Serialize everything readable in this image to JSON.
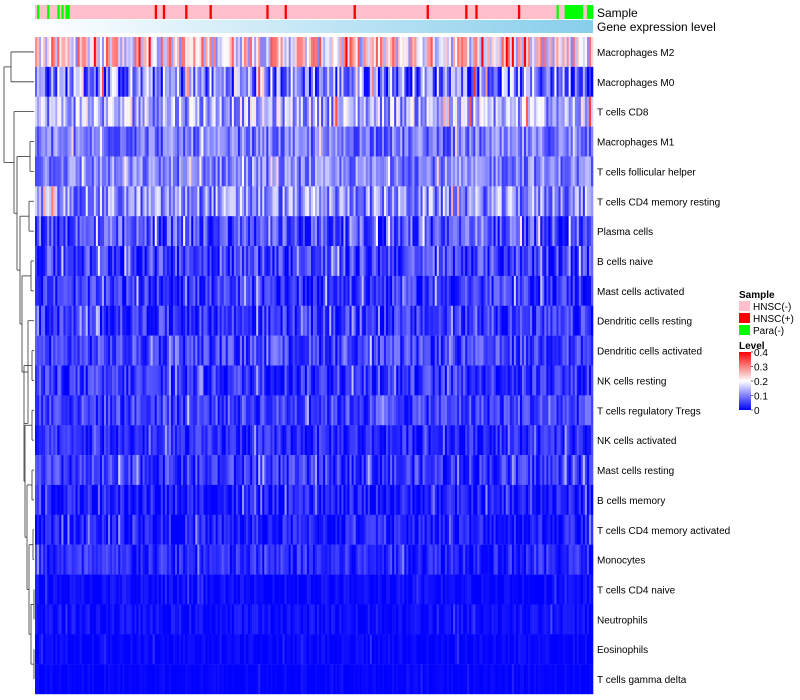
{
  "chart_data": {
    "type": "heatmap",
    "title": "",
    "annotation_rows": [
      {
        "label": "Sample"
      },
      {
        "label": "Gene expression level"
      }
    ],
    "rows": [
      {
        "label": "Macrophages M2",
        "mean": 0.22,
        "spread": 0.12
      },
      {
        "label": "Macrophages M0",
        "mean": 0.1,
        "spread": 0.11
      },
      {
        "label": "T cells CD8",
        "mean": 0.14,
        "spread": 0.09
      },
      {
        "label": "Macrophages M1",
        "mean": 0.09,
        "spread": 0.06
      },
      {
        "label": "T cells follicular helper",
        "mean": 0.1,
        "spread": 0.06
      },
      {
        "label": "T cells CD4 memory resting",
        "mean": 0.11,
        "spread": 0.08
      },
      {
        "label": "Plasma cells",
        "mean": 0.06,
        "spread": 0.07
      },
      {
        "label": "B cells naive",
        "mean": 0.05,
        "spread": 0.06
      },
      {
        "label": "Mast cells activated",
        "mean": 0.04,
        "spread": 0.05
      },
      {
        "label": "Dendritic cells resting",
        "mean": 0.04,
        "spread": 0.05
      },
      {
        "label": "Dendritic cells activated",
        "mean": 0.05,
        "spread": 0.05
      },
      {
        "label": "NK cells resting",
        "mean": 0.04,
        "spread": 0.05
      },
      {
        "label": "T cells regulatory  Tregs",
        "mean": 0.05,
        "spread": 0.05
      },
      {
        "label": "NK cells activated",
        "mean": 0.03,
        "spread": 0.04
      },
      {
        "label": "Mast cells resting",
        "mean": 0.04,
        "spread": 0.05
      },
      {
        "label": "B cells memory",
        "mean": 0.02,
        "spread": 0.04
      },
      {
        "label": "T cells CD4 memory activated",
        "mean": 0.02,
        "spread": 0.04
      },
      {
        "label": "Monocytes",
        "mean": 0.03,
        "spread": 0.04
      },
      {
        "label": "T cells CD4 naive",
        "mean": 0.005,
        "spread": 0.02
      },
      {
        "label": "Neutrophils",
        "mean": 0.01,
        "spread": 0.02
      },
      {
        "label": "Eosinophils",
        "mean": 0.003,
        "spread": 0.015
      },
      {
        "label": "T cells gamma delta",
        "mean": 0.002,
        "spread": 0.01
      }
    ],
    "n_samples": 275,
    "legends": {
      "sample": {
        "title": "Sample",
        "items": [
          {
            "label": "HNSC(-)",
            "color": "#FFC0CB"
          },
          {
            "label": "HNSC(+)",
            "color": "#FF0000"
          },
          {
            "label": "Para(-)",
            "color": "#00FF00"
          }
        ]
      },
      "level": {
        "title": "Level",
        "ticks": [
          "0.4",
          "0.3",
          "0.2",
          "0.1",
          "0"
        ],
        "min": 0,
        "max": 0.4,
        "colors": [
          "#0000FF",
          "#FFFFFF",
          "#FF0000"
        ]
      }
    },
    "gene_expression_gradient": [
      "#FFFFFF",
      "#87CEEB"
    ]
  }
}
